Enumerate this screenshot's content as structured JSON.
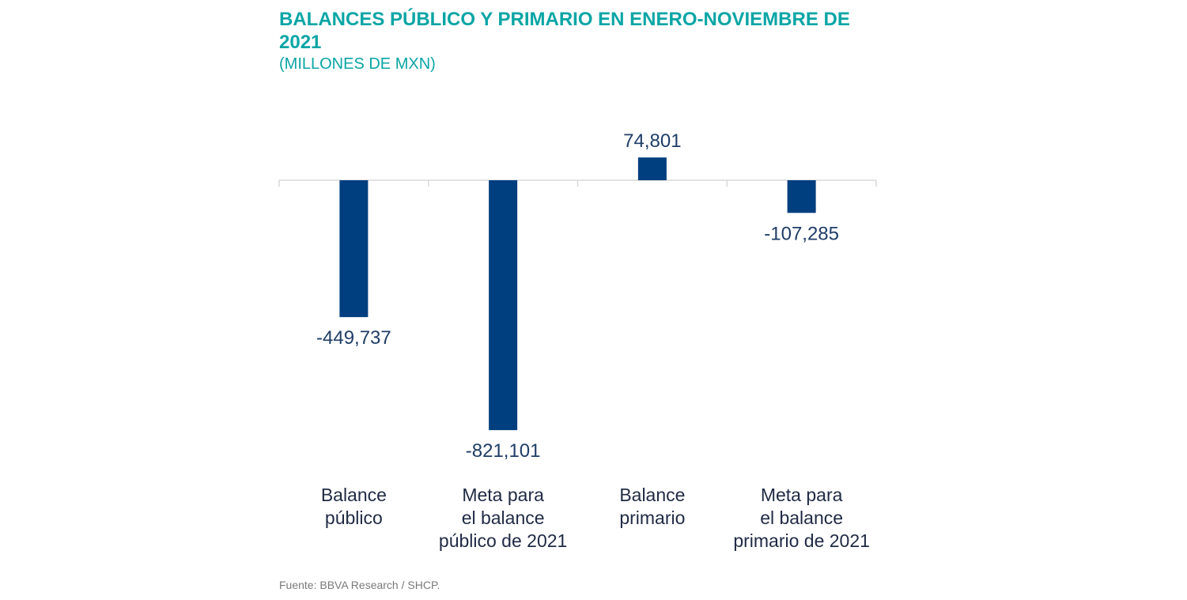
{
  "chart_data": {
    "type": "bar",
    "title": "BALANCES PÚBLICO Y PRIMARIO EN ENERO-NOVIEMBRE DE 2021",
    "subtitle": "(MILLONES DE MXN)",
    "categories": [
      [
        "Balance",
        "público"
      ],
      [
        "Meta para",
        "el balance",
        "público de 2021"
      ],
      [
        "Balance",
        "primario"
      ],
      [
        "Meta para",
        "el balance",
        "primario de 2021"
      ]
    ],
    "values": [
      -449737,
      -821101,
      74801,
      -107285
    ],
    "value_labels": [
      "-449,737",
      "-821,101",
      "74,801",
      "-107,285"
    ],
    "xlabel": "",
    "ylabel": "",
    "ylim": [
      -821101,
      74801
    ],
    "grid": false,
    "legend": "none",
    "bar_color": "#003f7f"
  },
  "source": "Fuente: BBVA Research / SHCP."
}
